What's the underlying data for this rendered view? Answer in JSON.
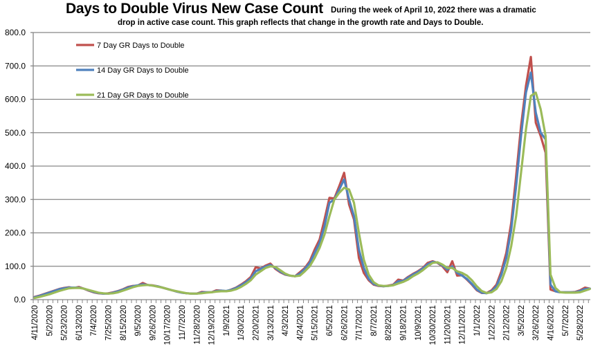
{
  "chart_data": {
    "type": "line",
    "title": "Days to Double Virus New Case Count",
    "subtitle_line1": "During the week of April 10, 2022 there was a dramatic",
    "subtitle_line2": "drop in active case count.  This graph reflects that change in the growth rate and Days to Double.",
    "xlabel": "",
    "ylabel": "",
    "x_start": "4/11/2020",
    "x_interval": "weekly",
    "x_tick_labels": [
      "4/11/2020",
      "5/2/2020",
      "5/23/2020",
      "6/13/2020",
      "7/4/2020",
      "7/25/2020",
      "8/15/2020",
      "9/5/2020",
      "9/26/2020",
      "10/17/2020",
      "11/7/2020",
      "11/28/2020",
      "12/19/2020",
      "1/9/2021",
      "1/30/2021",
      "2/20/2021",
      "3/13/2021",
      "4/3/2021",
      "4/24/2021",
      "5/15/2021",
      "6/5/2021",
      "6/26/2021",
      "7/17/2021",
      "8/7/2021",
      "8/28/2021",
      "9/18/2021",
      "10/9/2021",
      "10/30/2021",
      "11/20/2021",
      "12/11/2021",
      "1/1/2022",
      "1/22/2022",
      "2/12/2022",
      "3/5/2022",
      "3/26/2022",
      "4/16/2022",
      "5/7/2022",
      "5/28/2022"
    ],
    "y_tick_labels": [
      "0.0",
      "100.0",
      "200.0",
      "300.0",
      "400.0",
      "500.0",
      "600.0",
      "700.0",
      "800.0"
    ],
    "ylim": [
      0,
      800
    ],
    "grid": true,
    "legend_position": "top-left",
    "series": [
      {
        "name": "7 Day GR Days to Double",
        "color": "#c0504d",
        "values": [
          8,
          12,
          17,
          22,
          27,
          32,
          35,
          37,
          35,
          38,
          33,
          27,
          22,
          19,
          18,
          19,
          22,
          26,
          31,
          38,
          41,
          42,
          50,
          44,
          43,
          40,
          36,
          32,
          28,
          24,
          21,
          19,
          18,
          18,
          23,
          22,
          22,
          28,
          27,
          25,
          30,
          36,
          45,
          55,
          68,
          97,
          93,
          102,
          108,
          92,
          82,
          75,
          72,
          70,
          82,
          95,
          115,
          150,
          180,
          240,
          305,
          303,
          340,
          380,
          285,
          240,
          125,
          80,
          58,
          45,
          41,
          40,
          42,
          45,
          60,
          57,
          68,
          77,
          85,
          95,
          110,
          115,
          110,
          100,
          82,
          115,
          72,
          73,
          60,
          45,
          28,
          20,
          20,
          28,
          45,
          85,
          140,
          230,
          370,
          520,
          640,
          727,
          530,
          490,
          440,
          30,
          25,
          22,
          22,
          22,
          23,
          28,
          36,
          33
        ]
      },
      {
        "name": "14 Day GR Days to Double",
        "color": "#4f81bd",
        "values": [
          7,
          11,
          16,
          21,
          26,
          31,
          34,
          36,
          36,
          36,
          33,
          28,
          23,
          20,
          18,
          18,
          21,
          25,
          30,
          36,
          40,
          43,
          46,
          44,
          42,
          40,
          36,
          32,
          28,
          24,
          21,
          19,
          18,
          18,
          21,
          22,
          22,
          26,
          27,
          26,
          29,
          35,
          43,
          52,
          64,
          85,
          92,
          99,
          104,
          95,
          84,
          76,
          72,
          70,
          78,
          92,
          110,
          140,
          170,
          220,
          290,
          300,
          330,
          360,
          300,
          250,
          150,
          95,
          62,
          47,
          42,
          40,
          41,
          44,
          55,
          56,
          66,
          75,
          83,
          93,
          106,
          113,
          111,
          102,
          90,
          100,
          80,
          72,
          62,
          47,
          30,
          21,
          19,
          25,
          40,
          75,
          125,
          210,
          340,
          490,
          620,
          680,
          560,
          500,
          480,
          45,
          25,
          22,
          22,
          22,
          22,
          26,
          32,
          33
        ]
      },
      {
        "name": "21 Day GR Days to Double",
        "color": "#9bbb59",
        "values": [
          5,
          8,
          12,
          16,
          21,
          26,
          30,
          34,
          35,
          35,
          33,
          29,
          25,
          21,
          19,
          18,
          19,
          22,
          27,
          32,
          37,
          41,
          43,
          44,
          42,
          39,
          36,
          32,
          28,
          25,
          22,
          19,
          18,
          18,
          19,
          21,
          22,
          24,
          25,
          25,
          27,
          31,
          38,
          47,
          58,
          75,
          85,
          95,
          100,
          98,
          88,
          78,
          72,
          70,
          72,
          85,
          100,
          125,
          155,
          195,
          250,
          300,
          320,
          335,
          330,
          290,
          200,
          120,
          75,
          52,
          43,
          41,
          41,
          43,
          48,
          53,
          60,
          70,
          78,
          88,
          100,
          110,
          112,
          105,
          95,
          95,
          85,
          80,
          72,
          58,
          40,
          26,
          20,
          22,
          32,
          55,
          95,
          160,
          250,
          380,
          510,
          610,
          620,
          570,
          490,
          75,
          35,
          22,
          21,
          21,
          21,
          22,
          27,
          32
        ]
      }
    ]
  }
}
